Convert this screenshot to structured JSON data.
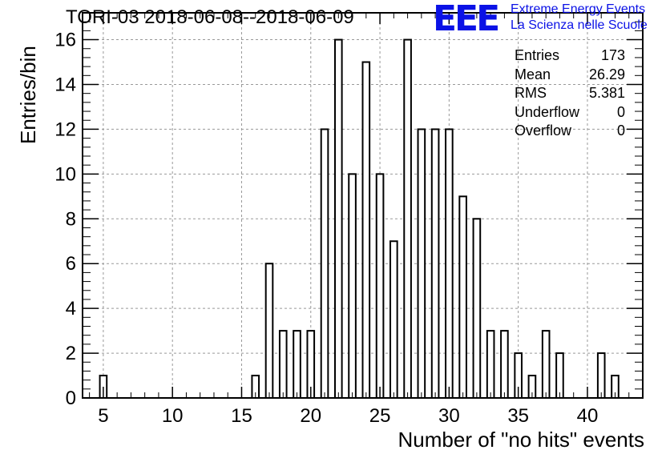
{
  "header": {
    "title": "TORI-03 2018-06-08--2018-06-09",
    "logo": "EEE",
    "logo_line1": "Extreme Energy Events",
    "logo_line2": "La Scienza nelle Scuole"
  },
  "stats": [
    {
      "label": "Entries",
      "value": "173"
    },
    {
      "label": "Mean",
      "value": "26.29"
    },
    {
      "label": "RMS",
      "value": "5.381"
    },
    {
      "label": "Underflow",
      "value": "0"
    },
    {
      "label": "Overflow",
      "value": "0"
    }
  ],
  "colors": {
    "logo": "#0b12e6",
    "grid": "#999999",
    "bar": "#000000"
  },
  "chart_data": {
    "type": "bar",
    "title": "TORI-03 2018-06-08--2018-06-09",
    "xlabel": "Number of \"no hits\" events",
    "ylabel": "Entries/bin",
    "xlim": [
      3.5,
      44
    ],
    "ylim": [
      0,
      17.2
    ],
    "grid": true,
    "legend": "none",
    "bin_width": 0.5,
    "xticks": [
      5,
      10,
      15,
      20,
      25,
      30,
      35,
      40
    ],
    "yticks": [
      0,
      2,
      4,
      6,
      8,
      10,
      12,
      14,
      16
    ],
    "x": [
      5,
      16,
      17,
      18,
      19,
      20,
      21,
      22,
      23,
      24,
      25,
      26,
      27,
      28,
      29,
      30,
      31,
      32,
      33,
      34,
      35,
      36,
      37,
      38,
      41,
      42
    ],
    "values": [
      1,
      1,
      6,
      3,
      3,
      3,
      12,
      16,
      10,
      15,
      10,
      7,
      16,
      12,
      12,
      12,
      9,
      8,
      3,
      3,
      2,
      1,
      3,
      2,
      2,
      1
    ]
  }
}
